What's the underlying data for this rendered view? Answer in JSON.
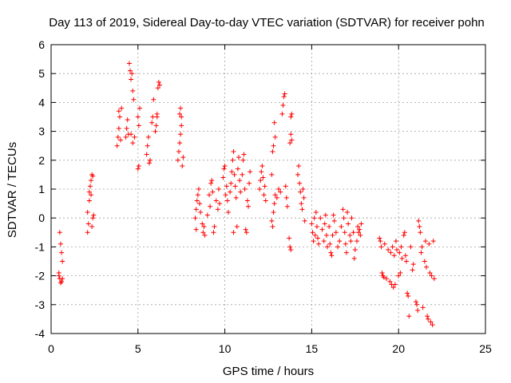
{
  "chart_data": {
    "type": "scatter",
    "title": "Day 113 of 2019, Sidereal Day-to-day VTEC variation (SDTVAR) for receiver pohn",
    "xlabel": "GPS time / hours",
    "ylabel": "SDTVAR / TECUs",
    "xlim": [
      0,
      25
    ],
    "ylim": [
      -4,
      6
    ],
    "x_ticks": [
      "0",
      "5",
      "10",
      "15",
      "20",
      "25"
    ],
    "y_ticks": [
      "-4",
      "-3",
      "-2",
      "-1",
      "0",
      "1",
      "2",
      "3",
      "4",
      "5",
      "6"
    ],
    "grid": true,
    "marker": "+",
    "color": "#ff0000",
    "series": [
      {
        "name": "SDTVAR",
        "points": [
          [
            0.45,
            -1.9
          ],
          [
            0.5,
            -2.1
          ],
          [
            0.55,
            -2.25
          ],
          [
            0.5,
            -0.5
          ],
          [
            0.55,
            -0.9
          ],
          [
            0.6,
            -1.2
          ],
          [
            0.65,
            -1.5
          ],
          [
            0.45,
            -2.0
          ],
          [
            0.6,
            -2.2
          ],
          [
            0.65,
            -2.1
          ],
          [
            2.1,
            -0.5
          ],
          [
            2.15,
            -0.2
          ],
          [
            2.1,
            0.2
          ],
          [
            2.2,
            0.6
          ],
          [
            2.2,
            0.9
          ],
          [
            2.25,
            1.1
          ],
          [
            2.3,
            1.3
          ],
          [
            2.35,
            1.5
          ],
          [
            2.4,
            1.45
          ],
          [
            2.3,
            0.8
          ],
          [
            2.4,
            0.0
          ],
          [
            2.45,
            0.1
          ],
          [
            2.35,
            -0.3
          ],
          [
            3.8,
            2.5
          ],
          [
            3.85,
            2.8
          ],
          [
            3.9,
            3.1
          ],
          [
            3.95,
            3.5
          ],
          [
            3.9,
            3.7
          ],
          [
            4.0,
            2.7
          ],
          [
            4.05,
            3.8
          ],
          [
            4.3,
            2.8
          ],
          [
            4.35,
            3.1
          ],
          [
            4.4,
            3.4
          ],
          [
            4.45,
            2.9
          ],
          [
            4.5,
            5.35
          ],
          [
            4.55,
            5.1
          ],
          [
            4.6,
            4.8
          ],
          [
            4.65,
            5.0
          ],
          [
            4.7,
            4.4
          ],
          [
            4.75,
            4.1
          ],
          [
            4.7,
            2.6
          ],
          [
            4.6,
            2.9
          ],
          [
            4.8,
            2.8
          ],
          [
            5.0,
            3.5
          ],
          [
            5.05,
            3.2
          ],
          [
            5.1,
            3.8
          ],
          [
            5.0,
            1.7
          ],
          [
            5.05,
            1.8
          ],
          [
            5.5,
            2.2
          ],
          [
            5.55,
            2.5
          ],
          [
            5.6,
            2.8
          ],
          [
            5.65,
            1.9
          ],
          [
            5.7,
            2.0
          ],
          [
            5.8,
            3.3
          ],
          [
            5.85,
            3.5
          ],
          [
            5.9,
            4.1
          ],
          [
            6.0,
            3.0
          ],
          [
            6.05,
            3.2
          ],
          [
            6.1,
            3.6
          ],
          [
            6.15,
            4.5
          ],
          [
            6.2,
            4.7
          ],
          [
            6.25,
            4.6
          ],
          [
            6.1,
            3.5
          ],
          [
            7.3,
            2.0
          ],
          [
            7.35,
            2.3
          ],
          [
            7.4,
            2.6
          ],
          [
            7.45,
            2.9
          ],
          [
            7.5,
            3.2
          ],
          [
            7.4,
            3.6
          ],
          [
            7.45,
            3.8
          ],
          [
            7.5,
            3.5
          ],
          [
            7.55,
            1.8
          ],
          [
            7.6,
            2.1
          ],
          [
            8.3,
            0.0
          ],
          [
            8.35,
            0.3
          ],
          [
            8.4,
            0.6
          ],
          [
            8.45,
            0.8
          ],
          [
            8.5,
            1.0
          ],
          [
            8.35,
            -0.4
          ],
          [
            8.55,
            0.5
          ],
          [
            8.6,
            0.2
          ],
          [
            8.7,
            -0.2
          ],
          [
            8.75,
            -0.5
          ],
          [
            8.8,
            -0.3
          ],
          [
            8.85,
            -0.6
          ],
          [
            9.0,
            0.1
          ],
          [
            9.1,
            0.8
          ],
          [
            9.15,
            0.4
          ],
          [
            9.2,
            1.2
          ],
          [
            9.25,
            1.3
          ],
          [
            9.3,
            0.9
          ],
          [
            9.35,
            -0.5
          ],
          [
            9.4,
            -0.3
          ],
          [
            9.5,
            0.6
          ],
          [
            9.6,
            0.3
          ],
          [
            9.65,
            1.0
          ],
          [
            9.7,
            0.5
          ],
          [
            9.9,
            1.4
          ],
          [
            9.95,
            1.7
          ],
          [
            10.0,
            1.8
          ],
          [
            10.05,
            0.8
          ],
          [
            10.1,
            1.1
          ],
          [
            10.15,
            0.6
          ],
          [
            10.2,
            0.2
          ],
          [
            10.3,
            0.9
          ],
          [
            10.35,
            1.2
          ],
          [
            10.4,
            1.6
          ],
          [
            10.45,
            2.0
          ],
          [
            10.5,
            2.3
          ],
          [
            10.55,
            1.5
          ],
          [
            10.6,
            1.1
          ],
          [
            10.65,
            0.7
          ],
          [
            10.7,
            -0.3
          ],
          [
            10.5,
            -0.5
          ],
          [
            10.75,
            1.7
          ],
          [
            10.8,
            2.1
          ],
          [
            10.85,
            1.3
          ],
          [
            10.9,
            0.9
          ],
          [
            11.0,
            1.5
          ],
          [
            11.05,
            2.0
          ],
          [
            11.1,
            2.2
          ],
          [
            11.15,
            1.0
          ],
          [
            11.2,
            -0.4
          ],
          [
            11.25,
            -0.5
          ],
          [
            11.3,
            0.6
          ],
          [
            11.35,
            0.4
          ],
          [
            11.4,
            1.2
          ],
          [
            11.45,
            1.6
          ],
          [
            12.0,
            1.0
          ],
          [
            12.05,
            1.3
          ],
          [
            12.1,
            1.6
          ],
          [
            12.15,
            1.8
          ],
          [
            12.2,
            1.4
          ],
          [
            12.25,
            0.8
          ],
          [
            12.3,
            1.1
          ],
          [
            12.35,
            0.6
          ],
          [
            12.7,
            -0.1
          ],
          [
            12.75,
            -0.3
          ],
          [
            12.8,
            0.2
          ],
          [
            12.85,
            0.5
          ],
          [
            12.9,
            0.8
          ],
          [
            12.7,
            1.5
          ],
          [
            12.75,
            2.3
          ],
          [
            12.8,
            2.5
          ],
          [
            12.85,
            3.3
          ],
          [
            12.9,
            2.8
          ],
          [
            13.0,
            0.7
          ],
          [
            13.1,
            1.0
          ],
          [
            13.2,
            0.9
          ],
          [
            13.3,
            3.6
          ],
          [
            13.35,
            3.9
          ],
          [
            13.4,
            4.2
          ],
          [
            13.45,
            4.3
          ],
          [
            13.5,
            1.1
          ],
          [
            13.55,
            0.7
          ],
          [
            13.6,
            0.4
          ],
          [
            13.7,
            -0.7
          ],
          [
            13.75,
            -1.0
          ],
          [
            13.8,
            -1.1
          ],
          [
            13.75,
            2.6
          ],
          [
            13.8,
            2.9
          ],
          [
            13.85,
            2.7
          ],
          [
            13.8,
            3.5
          ],
          [
            13.85,
            3.6
          ],
          [
            14.2,
            1.5
          ],
          [
            14.25,
            1.8
          ],
          [
            14.3,
            1.2
          ],
          [
            14.35,
            0.9
          ],
          [
            14.4,
            0.5
          ],
          [
            14.45,
            0.3
          ],
          [
            14.5,
            1.0
          ],
          [
            14.55,
            0.7
          ],
          [
            14.6,
            -0.1
          ],
          [
            15.0,
            -0.2
          ],
          [
            15.05,
            -0.5
          ],
          [
            15.1,
            -0.8
          ],
          [
            15.15,
            0.0
          ],
          [
            15.2,
            -0.6
          ],
          [
            15.25,
            0.2
          ],
          [
            15.3,
            -0.3
          ],
          [
            15.35,
            -0.7
          ],
          [
            15.4,
            -0.9
          ],
          [
            15.5,
            0.0
          ],
          [
            15.6,
            -0.4
          ],
          [
            15.7,
            -0.8
          ],
          [
            15.75,
            -0.2
          ],
          [
            15.8,
            0.1
          ],
          [
            15.85,
            -0.6
          ],
          [
            15.9,
            -1.0
          ],
          [
            16.0,
            -0.3
          ],
          [
            16.05,
            -0.9
          ],
          [
            16.1,
            -1.2
          ],
          [
            16.15,
            -1.3
          ],
          [
            16.2,
            -0.6
          ],
          [
            16.25,
            0.1
          ],
          [
            16.3,
            -0.1
          ],
          [
            16.4,
            -0.5
          ],
          [
            16.5,
            -1.0
          ],
          [
            16.6,
            -0.8
          ],
          [
            16.7,
            -0.3
          ],
          [
            16.8,
            0.3
          ],
          [
            16.85,
            0.0
          ],
          [
            16.9,
            -0.5
          ],
          [
            16.95,
            -0.9
          ],
          [
            17.0,
            -1.2
          ],
          [
            17.05,
            0.2
          ],
          [
            17.1,
            -0.2
          ],
          [
            17.2,
            -0.6
          ],
          [
            17.25,
            -0.8
          ],
          [
            17.3,
            0.0
          ],
          [
            17.4,
            -0.5
          ],
          [
            17.45,
            -1.4
          ],
          [
            17.5,
            -1.1
          ],
          [
            17.6,
            -0.8
          ],
          [
            17.65,
            -0.3
          ],
          [
            17.7,
            -0.5
          ],
          [
            17.75,
            -0.4
          ],
          [
            17.8,
            -0.6
          ],
          [
            17.85,
            -0.2
          ],
          [
            18.9,
            -0.7
          ],
          [
            18.95,
            -0.8
          ],
          [
            19.0,
            -1.0
          ],
          [
            19.05,
            -1.9
          ],
          [
            19.1,
            -2.0
          ],
          [
            19.15,
            -2.05
          ],
          [
            19.2,
            -0.9
          ],
          [
            19.3,
            -2.1
          ],
          [
            19.4,
            -1.1
          ],
          [
            19.5,
            -2.2
          ],
          [
            19.55,
            -1.2
          ],
          [
            19.6,
            -2.3
          ],
          [
            19.65,
            -1.0
          ],
          [
            19.7,
            -2.4
          ],
          [
            19.75,
            -1.3
          ],
          [
            19.8,
            -2.3
          ],
          [
            19.85,
            -0.8
          ],
          [
            19.9,
            -1.1
          ],
          [
            20.0,
            -2.0
          ],
          [
            20.05,
            -1.2
          ],
          [
            20.1,
            -1.9
          ],
          [
            20.15,
            -1.0
          ],
          [
            20.2,
            -1.4
          ],
          [
            20.3,
            -0.6
          ],
          [
            20.35,
            -0.5
          ],
          [
            20.4,
            -1.3
          ],
          [
            20.45,
            -1.5
          ],
          [
            20.5,
            -2.6
          ],
          [
            20.55,
            -2.7
          ],
          [
            20.6,
            -3.4
          ],
          [
            20.7,
            -1.0
          ],
          [
            20.8,
            -1.8
          ],
          [
            20.85,
            -1.6
          ],
          [
            21.0,
            -2.9
          ],
          [
            21.05,
            -3.0
          ],
          [
            21.1,
            -3.2
          ],
          [
            21.15,
            -0.1
          ],
          [
            21.2,
            -0.3
          ],
          [
            21.25,
            -0.5
          ],
          [
            21.3,
            -1.2
          ],
          [
            21.35,
            -1.0
          ],
          [
            21.4,
            -3.1
          ],
          [
            21.5,
            -1.5
          ],
          [
            21.55,
            -0.8
          ],
          [
            21.6,
            -1.7
          ],
          [
            21.65,
            -3.4
          ],
          [
            21.7,
            -3.5
          ],
          [
            21.75,
            -0.9
          ],
          [
            21.8,
            -1.9
          ],
          [
            21.85,
            -3.6
          ],
          [
            21.9,
            -2.0
          ],
          [
            21.95,
            -3.7
          ],
          [
            22.0,
            -0.8
          ],
          [
            22.05,
            -2.1
          ]
        ]
      }
    ]
  }
}
